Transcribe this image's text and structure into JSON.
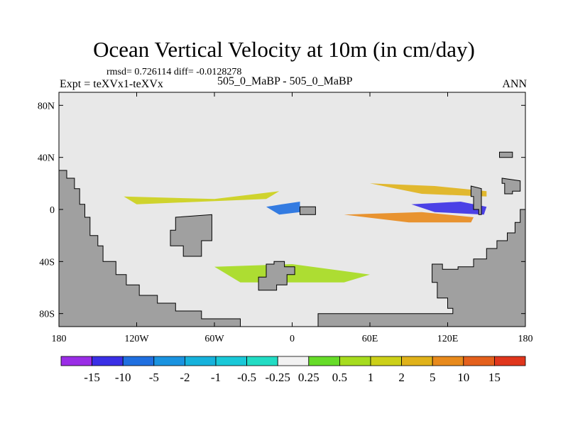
{
  "header": {
    "title": "Ocean Vertical Velocity at 10m (in cm/day)",
    "stats": "rmsd= 0.726114 diff= -0.0128278",
    "left_label": "Expt = teXVx1-teXVx",
    "center_label": "505_0_MaBP - 505_0_MaBP",
    "right_label": "ANN"
  },
  "colors": {
    "land": "#a0a0a0",
    "ocean_neutral": "#e8e8e8",
    "frame": "#000000"
  },
  "chart_data": {
    "type": "heatmap",
    "title": "Ocean Vertical Velocity at 10m (in cm/day)",
    "xlabel": "",
    "ylabel": "",
    "xlim": [
      -180,
      180
    ],
    "ylim": [
      -90,
      90
    ],
    "x_ticks": [
      {
        "value": -180,
        "label": "180"
      },
      {
        "value": -120,
        "label": "120W"
      },
      {
        "value": -60,
        "label": "60W"
      },
      {
        "value": 0,
        "label": "0"
      },
      {
        "value": 60,
        "label": "60E"
      },
      {
        "value": 120,
        "label": "120E"
      },
      {
        "value": 180,
        "label": "180"
      }
    ],
    "y_ticks": [
      {
        "value": 80,
        "label": "80N"
      },
      {
        "value": 40,
        "label": "40N"
      },
      {
        "value": 0,
        "label": "0"
      },
      {
        "value": -40,
        "label": "40S"
      },
      {
        "value": -80,
        "label": "80S"
      }
    ],
    "colorbar": {
      "labels": [
        "-15",
        "-10",
        "-5",
        "-2",
        "-1",
        "-0.5",
        "-0.25",
        "0.25",
        "0.5",
        "1",
        "2",
        "5",
        "10",
        "15"
      ],
      "colors": [
        "#9a2de6",
        "#3a2fe6",
        "#1f6fe0",
        "#1a93e0",
        "#16b2dc",
        "#19c8d8",
        "#22dcc4",
        "#f2f2f2",
        "#66dc28",
        "#a6dc1e",
        "#ccd018",
        "#e0b21a",
        "#e88a1c",
        "#e4601c",
        "#e0361c"
      ]
    },
    "land_regions": [
      {
        "name": "south-america",
        "lonlat": [
          [
            -180,
            -90
          ],
          [
            -180,
            30
          ],
          [
            -174,
            30
          ],
          [
            -174,
            24
          ],
          [
            -168,
            24
          ],
          [
            -168,
            16
          ],
          [
            -164,
            16
          ],
          [
            -164,
            4
          ],
          [
            -160,
            4
          ],
          [
            -160,
            -6
          ],
          [
            -156,
            -6
          ],
          [
            -156,
            -20
          ],
          [
            -150,
            -20
          ],
          [
            -150,
            -28
          ],
          [
            -146,
            -28
          ],
          [
            -146,
            -40
          ],
          [
            -136,
            -40
          ],
          [
            -136,
            -50
          ],
          [
            -128,
            -50
          ],
          [
            -128,
            -58
          ],
          [
            -118,
            -58
          ],
          [
            -118,
            -66
          ],
          [
            -104,
            -66
          ],
          [
            -104,
            -72
          ],
          [
            -90,
            -72
          ],
          [
            -90,
            -78
          ],
          [
            -70,
            -78
          ],
          [
            -70,
            -84
          ],
          [
            -40,
            -84
          ],
          [
            -40,
            -90
          ]
        ]
      },
      {
        "name": "central-island",
        "lonlat": [
          [
            -90,
            -6
          ],
          [
            -90,
            -16
          ],
          [
            -94,
            -16
          ],
          [
            -94,
            -28
          ],
          [
            -84,
            -28
          ],
          [
            -84,
            -36
          ],
          [
            -70,
            -36
          ],
          [
            -70,
            -24
          ],
          [
            -62,
            -24
          ],
          [
            -62,
            -4
          ]
        ]
      },
      {
        "name": "southern-island",
        "lonlat": [
          [
            -20,
            -42
          ],
          [
            -20,
            -52
          ],
          [
            -26,
            -52
          ],
          [
            -26,
            -62
          ],
          [
            -12,
            -62
          ],
          [
            -12,
            -58
          ],
          [
            -4,
            -58
          ],
          [
            -4,
            -50
          ],
          [
            2,
            -50
          ],
          [
            2,
            -44
          ],
          [
            -6,
            -44
          ],
          [
            -6,
            -40
          ],
          [
            -14,
            -40
          ],
          [
            -14,
            -42
          ]
        ]
      },
      {
        "name": "small-islet-equator",
        "lonlat": [
          [
            6,
            2
          ],
          [
            6,
            -4
          ],
          [
            18,
            -4
          ],
          [
            18,
            2
          ]
        ]
      },
      {
        "name": "australia-antarctica",
        "lonlat": [
          [
            180,
            -90
          ],
          [
            180,
            0
          ],
          [
            176,
            0
          ],
          [
            176,
            -10
          ],
          [
            172,
            -10
          ],
          [
            172,
            -18
          ],
          [
            166,
            -18
          ],
          [
            166,
            -24
          ],
          [
            158,
            -24
          ],
          [
            158,
            -30
          ],
          [
            150,
            -30
          ],
          [
            150,
            -38
          ],
          [
            140,
            -38
          ],
          [
            140,
            -44
          ],
          [
            128,
            -44
          ],
          [
            128,
            -46
          ],
          [
            116,
            -46
          ],
          [
            116,
            -42
          ],
          [
            108,
            -42
          ],
          [
            108,
            -56
          ],
          [
            112,
            -56
          ],
          [
            112,
            -68
          ],
          [
            120,
            -68
          ],
          [
            120,
            -76
          ],
          [
            124,
            -76
          ],
          [
            124,
            -80
          ],
          [
            20,
            -80
          ],
          [
            20,
            -90
          ]
        ]
      },
      {
        "name": "pacific-islet-north",
        "lonlat": [
          [
            162,
            24
          ],
          [
            162,
            20
          ],
          [
            164,
            20
          ],
          [
            164,
            12
          ],
          [
            170,
            12
          ],
          [
            170,
            14
          ],
          [
            176,
            14
          ],
          [
            176,
            22
          ]
        ]
      },
      {
        "name": "pacific-spur",
        "lonlat": [
          [
            138,
            18
          ],
          [
            138,
            10
          ],
          [
            140,
            10
          ],
          [
            140,
            0
          ],
          [
            144,
            0
          ],
          [
            144,
            -4
          ],
          [
            146,
            -4
          ],
          [
            146,
            16
          ]
        ]
      },
      {
        "name": "northeast-islet",
        "lonlat": [
          [
            160,
            44
          ],
          [
            160,
            40
          ],
          [
            170,
            40
          ],
          [
            170,
            44
          ]
        ]
      }
    ],
    "anomaly_bands": [
      {
        "name": "deep-pacific-upwelling",
        "value": -15,
        "lonlat": [
          [
            92,
            4
          ],
          [
            130,
            6
          ],
          [
            150,
            2
          ],
          [
            148,
            -4
          ],
          [
            110,
            -2
          ]
        ]
      },
      {
        "name": "east-pacific-upwelling",
        "value": -10,
        "lonlat": [
          [
            -20,
            2
          ],
          [
            -8,
            4
          ],
          [
            6,
            6
          ],
          [
            6,
            -2
          ],
          [
            -10,
            -4
          ]
        ]
      },
      {
        "name": "equatorial-downwelling",
        "value": 5,
        "lonlat": [
          [
            40,
            -4
          ],
          [
            100,
            -2
          ],
          [
            140,
            -6
          ],
          [
            138,
            -10
          ],
          [
            90,
            -10
          ]
        ]
      },
      {
        "name": "north-tropical-band",
        "value": 2,
        "lonlat": [
          [
            60,
            20
          ],
          [
            110,
            18
          ],
          [
            150,
            14
          ],
          [
            150,
            10
          ],
          [
            100,
            12
          ]
        ]
      },
      {
        "name": "mid-atlantic-band",
        "value": 1,
        "lonlat": [
          [
            -130,
            10
          ],
          [
            -60,
            8
          ],
          [
            -10,
            14
          ],
          [
            -20,
            8
          ],
          [
            -120,
            4
          ]
        ]
      },
      {
        "name": "southern-ocean-band",
        "value": 0.5,
        "lonlat": [
          [
            -60,
            -44
          ],
          [
            0,
            -42
          ],
          [
            60,
            -50
          ],
          [
            40,
            -56
          ],
          [
            -40,
            -56
          ]
        ]
      }
    ]
  }
}
